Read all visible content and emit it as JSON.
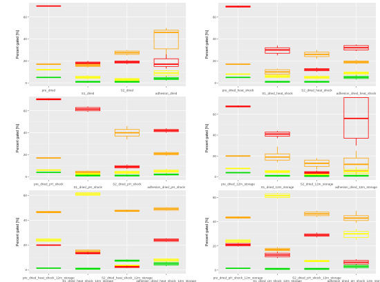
{
  "chart_data": [
    {
      "type": "boxplot",
      "ylabel": "Percent gated [%]",
      "ylim": [
        -3,
        73
      ],
      "yticks": [
        0,
        20,
        40,
        60
      ],
      "categories": [
        "pre_dried",
        "S1_dried",
        "S2_dried",
        "adhesion_dried"
      ],
      "groups": [
        [
          {
            "color": "#ff0000",
            "q1": 70,
            "median": 70,
            "q3": 70,
            "lo": 70,
            "hi": 70
          },
          {
            "color": "#ffa500",
            "q1": 17,
            "median": 17,
            "q3": 17,
            "lo": 17,
            "hi": 17
          },
          {
            "color": "#ffff00",
            "q1": 12,
            "median": 12,
            "q3": 12,
            "lo": 12,
            "hi": 12
          },
          {
            "color": "#00dd00",
            "q1": 5,
            "median": 5,
            "q3": 5,
            "lo": 5,
            "hi": 5
          }
        ],
        [
          {
            "color": "#ff0000",
            "q1": 17,
            "median": 18,
            "q3": 19,
            "lo": 16,
            "hi": 20
          },
          {
            "color": "#ffa500",
            "q1": 15,
            "median": 16,
            "q3": 17,
            "lo": 14,
            "hi": 18
          },
          {
            "color": "#ffff00",
            "q1": 4,
            "median": 5,
            "q3": 6,
            "lo": 3,
            "hi": 7
          },
          {
            "color": "#00dd00",
            "q1": 0.5,
            "median": 1,
            "q3": 1.5,
            "lo": 0,
            "hi": 2
          }
        ],
        [
          {
            "color": "#ffa500",
            "q1": 26,
            "median": 27.5,
            "q3": 29,
            "lo": 25,
            "hi": 30
          },
          {
            "color": "#ff0000",
            "q1": 18,
            "median": 19,
            "q3": 20,
            "lo": 17,
            "hi": 21
          },
          {
            "color": "#ffff00",
            "q1": 2,
            "median": 3,
            "q3": 4,
            "lo": 1.5,
            "hi": 4.5
          },
          {
            "color": "#00dd00",
            "q1": 0.5,
            "median": 1,
            "q3": 1.5,
            "lo": 0,
            "hi": 2
          }
        ],
        [
          {
            "color": "#ffa500",
            "q1": 31,
            "median": 46,
            "q3": 48,
            "lo": 22,
            "hi": 50
          },
          {
            "color": "#ff0000",
            "q1": 15,
            "median": 17,
            "q3": 22,
            "lo": 13,
            "hi": 26
          },
          {
            "color": "#ffff00",
            "q1": 7,
            "median": 9,
            "q3": 11,
            "lo": 5,
            "hi": 12
          },
          {
            "color": "#00dd00",
            "q1": 3,
            "median": 4,
            "q3": 5,
            "lo": 2,
            "hi": 6
          }
        ]
      ]
    },
    {
      "type": "boxplot",
      "ylabel": "Percent gated [%]",
      "ylim": [
        -3,
        73
      ],
      "yticks": [
        0,
        20,
        40,
        60
      ],
      "categories": [
        "pre_dried_heat_shock",
        "S1_dried_heat_shock",
        "S2_dried_heat_shock",
        "adhesion_dried_heat_shock"
      ],
      "groups": [
        [
          {
            "color": "#ff0000",
            "q1": 69,
            "median": 69.5,
            "q3": 70,
            "lo": 68.5,
            "hi": 70.5
          },
          {
            "color": "#ffa500",
            "q1": 17,
            "median": 17,
            "q3": 17,
            "lo": 17,
            "hi": 17
          },
          {
            "color": "#ffff00",
            "q1": 8,
            "median": 8,
            "q3": 8,
            "lo": 8,
            "hi": 8
          },
          {
            "color": "#00dd00",
            "q1": 5,
            "median": 5,
            "q3": 5,
            "lo": 5,
            "hi": 5
          }
        ],
        [
          {
            "color": "#ff0000",
            "q1": 27,
            "median": 30,
            "q3": 32,
            "lo": 25,
            "hi": 34
          },
          {
            "color": "#ffa500",
            "q1": 8,
            "median": 10,
            "q3": 12,
            "lo": 7,
            "hi": 13
          },
          {
            "color": "#ffff00",
            "q1": 5,
            "median": 6,
            "q3": 7,
            "lo": 4,
            "hi": 8
          },
          {
            "color": "#00dd00",
            "q1": 0.5,
            "median": 1,
            "q3": 1.5,
            "lo": 0,
            "hi": 2
          }
        ],
        [
          {
            "color": "#ffa500",
            "q1": 24,
            "median": 26,
            "q3": 28,
            "lo": 22,
            "hi": 30
          },
          {
            "color": "#ff0000",
            "q1": 11,
            "median": 12,
            "q3": 13,
            "lo": 10,
            "hi": 14
          },
          {
            "color": "#ffff00",
            "q1": 4,
            "median": 5,
            "q3": 6,
            "lo": 3,
            "hi": 7
          },
          {
            "color": "#00dd00",
            "q1": 0.5,
            "median": 1,
            "q3": 1.5,
            "lo": 0,
            "hi": 2
          }
        ],
        [
          {
            "color": "#ff0000",
            "q1": 30,
            "median": 32,
            "q3": 34,
            "lo": 29,
            "hi": 35
          },
          {
            "color": "#ffa500",
            "q1": 18,
            "median": 19,
            "q3": 20,
            "lo": 17,
            "hi": 21
          },
          {
            "color": "#ffff00",
            "q1": 8,
            "median": 9,
            "q3": 10,
            "lo": 7,
            "hi": 11
          },
          {
            "color": "#00dd00",
            "q1": 4,
            "median": 5,
            "q3": 6,
            "lo": 3,
            "hi": 7
          }
        ]
      ]
    },
    {
      "type": "boxplot",
      "ylabel": "Percent gated [%]",
      "ylim": [
        -3,
        73
      ],
      "yticks": [
        0,
        20,
        40,
        60
      ],
      "categories": [
        "pre_dried_pH_shock",
        "S1_dried_pH_shock",
        "S2_dried_pH_shock",
        "adhesion_dried_pH_shock"
      ],
      "groups": [
        [
          {
            "color": "#ff0000",
            "q1": 70,
            "median": 70.5,
            "q3": 71,
            "lo": 69.5,
            "hi": 71.5
          },
          {
            "color": "#ffa500",
            "q1": 17,
            "median": 17,
            "q3": 17,
            "lo": 17,
            "hi": 17
          },
          {
            "color": "#ffff00",
            "q1": 6,
            "median": 6,
            "q3": 6,
            "lo": 6,
            "hi": 6
          },
          {
            "color": "#00dd00",
            "q1": 4,
            "median": 4,
            "q3": 4,
            "lo": 4,
            "hi": 4
          }
        ],
        [
          {
            "color": "#ff0000",
            "q1": 60,
            "median": 61.5,
            "q3": 63,
            "lo": 59,
            "hi": 64
          },
          {
            "color": "#ffa500",
            "q1": 3,
            "median": 4,
            "q3": 5,
            "lo": 2.5,
            "hi": 5.5
          },
          {
            "color": "#ffff00",
            "q1": 2,
            "median": 2.5,
            "q3": 3,
            "lo": 1.5,
            "hi": 3.5
          },
          {
            "color": "#00dd00",
            "q1": 0.5,
            "median": 1,
            "q3": 1.5,
            "lo": 0,
            "hi": 2
          }
        ],
        [
          {
            "color": "#ffa500",
            "q1": 37,
            "median": 40,
            "q3": 43,
            "lo": 34,
            "hi": 46
          },
          {
            "color": "#ff0000",
            "q1": 8,
            "median": 9,
            "q3": 10,
            "lo": 7,
            "hi": 11
          },
          {
            "color": "#ffff00",
            "q1": 3,
            "median": 4,
            "q3": 5,
            "lo": 2,
            "hi": 6
          },
          {
            "color": "#00dd00",
            "q1": 0.5,
            "median": 1,
            "q3": 1.5,
            "lo": 0,
            "hi": 2
          }
        ],
        [
          {
            "color": "#ff0000",
            "q1": 41,
            "median": 42,
            "q3": 43,
            "lo": 40,
            "hi": 44
          },
          {
            "color": "#ffa500",
            "q1": 20,
            "median": 21,
            "q3": 22,
            "lo": 19,
            "hi": 23
          },
          {
            "color": "#ffff00",
            "q1": 4,
            "median": 5,
            "q3": 6,
            "lo": 3,
            "hi": 7
          },
          {
            "color": "#00dd00",
            "q1": 1.5,
            "median": 2,
            "q3": 2.5,
            "lo": 1,
            "hi": 3
          }
        ]
      ]
    },
    {
      "type": "boxplot",
      "ylabel": "Percent gated [%]",
      "ylim": [
        -3,
        77
      ],
      "yticks": [
        0,
        20,
        40,
        60
      ],
      "categories": [
        "pre_dried_12m_storage",
        "S1_dried_12m_storage",
        "S2_dried_12m_storage",
        "adhesion_dried_12m_storage"
      ],
      "groups": [
        [
          {
            "color": "#ff0000",
            "q1": 67,
            "median": 67.5,
            "q3": 68,
            "lo": 66.5,
            "hi": 68.5
          },
          {
            "color": "#ffa500",
            "q1": 20,
            "median": 20,
            "q3": 20,
            "lo": 20,
            "hi": 20
          },
          {
            "color": "#ffff00",
            "q1": 8,
            "median": 8,
            "q3": 8,
            "lo": 8,
            "hi": 8
          },
          {
            "color": "#00dd00",
            "q1": 4,
            "median": 4,
            "q3": 4,
            "lo": 4,
            "hi": 4
          }
        ],
        [
          {
            "color": "#ff0000",
            "q1": 39,
            "median": 41,
            "q3": 43,
            "lo": 37,
            "hi": 44
          },
          {
            "color": "#ffa500",
            "q1": 16,
            "median": 19,
            "q3": 22,
            "lo": 14,
            "hi": 29
          },
          {
            "color": "#ffff00",
            "q1": 4,
            "median": 5,
            "q3": 6,
            "lo": 3,
            "hi": 7
          },
          {
            "color": "#00dd00",
            "q1": 0.5,
            "median": 1,
            "q3": 1.5,
            "lo": 0,
            "hi": 2
          }
        ],
        [
          {
            "color": "#ffa500",
            "q1": 10,
            "median": 13,
            "q3": 16,
            "lo": 7,
            "hi": 18
          },
          {
            "color": "#ff0000",
            "q1": 3,
            "median": 4,
            "q3": 5,
            "lo": 2,
            "hi": 6
          },
          {
            "color": "#ffff00",
            "q1": 1.5,
            "median": 2,
            "q3": 2.5,
            "lo": 1,
            "hi": 3
          },
          {
            "color": "#00dd00",
            "q1": 0.3,
            "median": 0.8,
            "q3": 1.3,
            "lo": 0,
            "hi": 2
          }
        ],
        [
          {
            "color": "#ff0000",
            "q1": 37,
            "median": 56,
            "q3": 76,
            "lo": 30,
            "hi": 76
          },
          {
            "color": "#ffa500",
            "q1": 6,
            "median": 12,
            "q3": 18,
            "lo": 3,
            "hi": 25
          },
          {
            "color": "#ffff00",
            "q1": 3,
            "median": 5,
            "q3": 7,
            "lo": 1,
            "hi": 10
          },
          {
            "color": "#00dd00",
            "q1": 0.5,
            "median": 1,
            "q3": 1.5,
            "lo": 0,
            "hi": 2
          }
        ]
      ]
    },
    {
      "type": "boxplot",
      "ylabel": "Percent gated [%]",
      "ylim": [
        -3,
        64
      ],
      "yticks": [
        0,
        20,
        40,
        60
      ],
      "categories": [
        "pre_dried_heat_shock_12m_storage",
        "S1_dried_heat_shock_12m_storage",
        "S2_dried_heat_shock_12m_storage",
        "adhesion_dried_heat_shock_12m_storage"
      ],
      "groups": [
        [
          {
            "color": "#ffa500",
            "q1": 46,
            "median": 46.5,
            "q3": 47,
            "lo": 45.5,
            "hi": 47.5
          },
          {
            "color": "#ffff00",
            "q1": 23,
            "median": 24,
            "q3": 25,
            "lo": 22.5,
            "hi": 25.5
          },
          {
            "color": "#ff0000",
            "q1": 20,
            "median": 20,
            "q3": 20,
            "lo": 20,
            "hi": 20
          },
          {
            "color": "#00dd00",
            "q1": 1.5,
            "median": 1.5,
            "q3": 1.5,
            "lo": 1.5,
            "hi": 1.5
          }
        ],
        [
          {
            "color": "#ffff00",
            "q1": 60,
            "median": 61,
            "q3": 62,
            "lo": 59.5,
            "hi": 62.5
          },
          {
            "color": "#ffa500",
            "q1": 14,
            "median": 15,
            "q3": 16,
            "lo": 13.5,
            "hi": 16.5
          },
          {
            "color": "#ff0000",
            "q1": 13,
            "median": 13.5,
            "q3": 14,
            "lo": 12.5,
            "hi": 14.5
          },
          {
            "color": "#00dd00",
            "q1": 0.5,
            "median": 1,
            "q3": 1.5,
            "lo": 0.2,
            "hi": 1.8
          }
        ],
        [
          {
            "color": "#ffa500",
            "q1": 47,
            "median": 47.5,
            "q3": 48,
            "lo": 46.5,
            "hi": 48.5
          },
          {
            "color": "#00dd00",
            "q1": 7,
            "median": 7.5,
            "q3": 8,
            "lo": 6.5,
            "hi": 8.5
          },
          {
            "color": "#ffff00",
            "q1": 3,
            "median": 3.5,
            "q3": 4,
            "lo": 2.5,
            "hi": 4.5
          },
          {
            "color": "#ff0000",
            "q1": 2,
            "median": 2.5,
            "q3": 3,
            "lo": 1.5,
            "hi": 3.5
          }
        ],
        [
          {
            "color": "#ffa500",
            "q1": 48,
            "median": 49,
            "q3": 50,
            "lo": 47.5,
            "hi": 50.5
          },
          {
            "color": "#ff0000",
            "q1": 23,
            "median": 24,
            "q3": 25,
            "lo": 22.5,
            "hi": 25.5
          },
          {
            "color": "#ffff00",
            "q1": 7,
            "median": 8,
            "q3": 9,
            "lo": 6,
            "hi": 9.5
          },
          {
            "color": "#00dd00",
            "q1": 4,
            "median": 5,
            "q3": 6,
            "lo": 3,
            "hi": 6.5
          }
        ]
      ]
    },
    {
      "type": "boxplot",
      "ylabel": "Percent gated [%]",
      "ylim": [
        -3,
        66
      ],
      "yticks": [
        0,
        20,
        40,
        60
      ],
      "categories": [
        "pre_dried_pH_shock_12m_storage",
        "S1_dried_pH_shock_12m_storage",
        "S2_dried_pH_shock_12m_storage",
        "adhesion_dried_pH_shock_12m_storage"
      ],
      "groups": [
        [
          {
            "color": "#ffa500",
            "q1": 43,
            "median": 43.5,
            "q3": 44,
            "lo": 42.5,
            "hi": 44.5
          },
          {
            "color": "#ffff00",
            "q1": 23,
            "median": 24,
            "q3": 25,
            "lo": 22.5,
            "hi": 25.5
          },
          {
            "color": "#ff0000",
            "q1": 20,
            "median": 21,
            "q3": 22,
            "lo": 19.5,
            "hi": 22.5
          },
          {
            "color": "#00dd00",
            "q1": 1.5,
            "median": 1.5,
            "q3": 1.5,
            "lo": 1.5,
            "hi": 1.5
          }
        ],
        [
          {
            "color": "#ffff00",
            "q1": 60,
            "median": 61.5,
            "q3": 63,
            "lo": 59,
            "hi": 64
          },
          {
            "color": "#ffa500",
            "q1": 16,
            "median": 17,
            "q3": 18,
            "lo": 15,
            "hi": 19
          },
          {
            "color": "#ff0000",
            "q1": 11,
            "median": 12.5,
            "q3": 14,
            "lo": 10,
            "hi": 15
          },
          {
            "color": "#00dd00",
            "q1": 0.5,
            "median": 1,
            "q3": 1.5,
            "lo": 0.2,
            "hi": 1.8
          }
        ],
        [
          {
            "color": "#ffa500",
            "q1": 45,
            "median": 46.5,
            "q3": 48,
            "lo": 44,
            "hi": 49
          },
          {
            "color": "#ff0000",
            "q1": 28,
            "median": 29,
            "q3": 30,
            "lo": 27,
            "hi": 31
          },
          {
            "color": "#ffff00",
            "q1": 7,
            "median": 7.5,
            "q3": 8,
            "lo": 6.5,
            "hi": 8.5
          },
          {
            "color": "#00dd00",
            "q1": 0.5,
            "median": 1,
            "q3": 1.5,
            "lo": 0.2,
            "hi": 1.8
          }
        ],
        [
          {
            "color": "#ffa500",
            "q1": 41,
            "median": 43,
            "q3": 45,
            "lo": 39,
            "hi": 49
          },
          {
            "color": "#ffff00",
            "q1": 27,
            "median": 30,
            "q3": 32,
            "lo": 25,
            "hi": 34
          },
          {
            "color": "#ff0000",
            "q1": 5,
            "median": 6.5,
            "q3": 8,
            "lo": 4,
            "hi": 9
          },
          {
            "color": "#00dd00",
            "q1": 2,
            "median": 3,
            "q3": 4,
            "lo": 1,
            "hi": 5
          }
        ]
      ]
    }
  ]
}
